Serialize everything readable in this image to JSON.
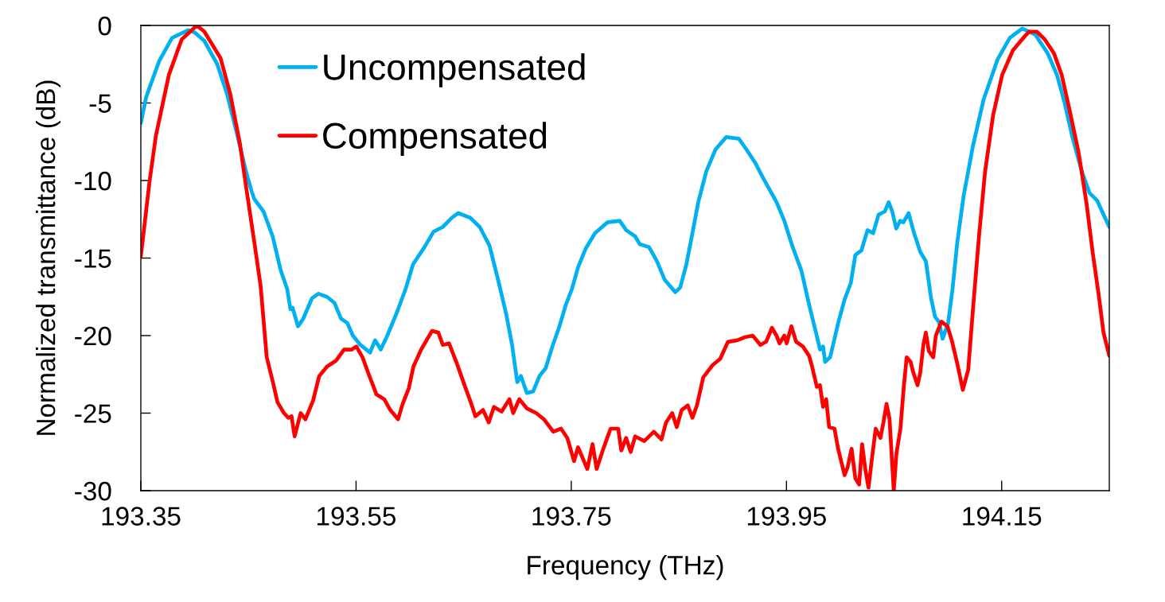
{
  "chart_data": {
    "type": "line",
    "xlabel": "Frequency (THz)",
    "ylabel": "Normalized transmittance (dB)",
    "xlim": [
      193.35,
      194.25
    ],
    "xticks": [
      193.35,
      193.55,
      193.75,
      193.95,
      194.15
    ],
    "ylim": [
      -30,
      0
    ],
    "yticks": [
      0,
      -5,
      -10,
      -15,
      -20,
      -25,
      -30
    ],
    "legend": "top left",
    "line_style": "solid",
    "series": [
      {
        "name": "Uncompensated",
        "color": "#00b0f0",
        "x": [
          193.35,
          193.355,
          193.367,
          193.379,
          193.394,
          193.4,
          193.409,
          193.421,
          193.43,
          193.439,
          193.448,
          193.453,
          193.4555,
          193.464,
          193.4725,
          193.48,
          193.486,
          193.489,
          193.491,
          193.496,
          193.501,
          193.509,
          193.515,
          193.523,
          193.53,
          193.536,
          193.542,
          193.547,
          193.554,
          193.563,
          193.5676,
          193.573,
          193.579,
          193.588,
          193.596,
          193.603,
          193.6135,
          193.622,
          193.6305,
          193.639,
          193.645,
          193.656,
          193.665,
          193.674,
          193.682,
          193.6895,
          193.695,
          193.6998,
          193.7032,
          193.7087,
          193.7146,
          193.7205,
          193.7262,
          193.732,
          193.739,
          193.745,
          193.7506,
          193.7563,
          193.7633,
          193.772,
          193.7836,
          193.795,
          193.801,
          193.8094,
          193.8136,
          193.8223,
          193.8296,
          193.8368,
          193.8467,
          193.8512,
          193.857,
          193.8626,
          193.868,
          193.8755,
          193.884,
          193.894,
          193.9057,
          193.9128,
          193.9213,
          193.928,
          193.9352,
          193.9408,
          193.948,
          193.9553,
          193.9638,
          193.971,
          193.9767,
          193.9812,
          193.984,
          193.9859,
          193.9905,
          193.994,
          193.998,
          194.0039,
          194.0098,
          194.014,
          194.0197,
          194.0253,
          194.0305,
          194.0356,
          194.0413,
          194.045,
          194.0483,
          194.052,
          194.0556,
          194.0586,
          194.0635,
          194.0686,
          194.0743,
          194.0795,
          194.0844,
          194.0881,
          194.0916,
          194.0951,
          194.1002,
          194.1043,
          194.1087,
          194.1146,
          194.1232,
          194.1331,
          194.1461,
          194.1575,
          194.1692,
          194.1813,
          194.1928,
          194.2014,
          194.2085,
          194.2157,
          194.2244,
          194.2316,
          194.2388,
          194.2447,
          194.25
        ],
        "values": [
          -6.3,
          -4.6,
          -2.3,
          -0.8,
          -0.3,
          -0.45,
          -1.0,
          -2.5,
          -4.4,
          -6.9,
          -9.5,
          -10.7,
          -11.2,
          -12.0,
          -13.6,
          -15.8,
          -17.0,
          -18.3,
          -18.2,
          -19.4,
          -18.9,
          -17.6,
          -17.3,
          -17.5,
          -17.9,
          -18.9,
          -19.2,
          -20.0,
          -20.6,
          -21.1,
          -20.3,
          -20.9,
          -20.0,
          -18.5,
          -17.0,
          -15.4,
          -14.3,
          -13.3,
          -13.0,
          -12.4,
          -12.1,
          -12.4,
          -13.0,
          -14.2,
          -16.4,
          -18.6,
          -20.6,
          -23.0,
          -22.6,
          -23.7,
          -23.6,
          -22.6,
          -22.1,
          -20.8,
          -19.4,
          -18.0,
          -17.0,
          -15.6,
          -14.4,
          -13.4,
          -12.7,
          -12.6,
          -13.2,
          -13.6,
          -14.1,
          -14.3,
          -15.2,
          -16.4,
          -17.2,
          -16.9,
          -15.4,
          -13.4,
          -11.4,
          -9.4,
          -8.0,
          -7.2,
          -7.3,
          -8.0,
          -8.9,
          -9.8,
          -10.7,
          -11.4,
          -12.6,
          -14.2,
          -15.8,
          -18.0,
          -19.6,
          -20.9,
          -20.7,
          -21.7,
          -21.4,
          -20.4,
          -19.2,
          -17.7,
          -16.6,
          -14.8,
          -14.5,
          -13.2,
          -13.4,
          -12.2,
          -12.0,
          -11.4,
          -12.0,
          -13.1,
          -12.6,
          -12.7,
          -12.1,
          -13.4,
          -14.6,
          -15.2,
          -17.6,
          -18.8,
          -19.1,
          -20.2,
          -19.2,
          -17.0,
          -14.0,
          -11.0,
          -7.8,
          -4.8,
          -2.2,
          -0.8,
          -0.2,
          -0.6,
          -1.8,
          -3.2,
          -5.0,
          -7.2,
          -9.4,
          -10.8,
          -11.3,
          -12.2,
          -13.0
        ]
      },
      {
        "name": "Compensated",
        "color": "#ff0000",
        "x": [
          193.35,
          193.358,
          193.364,
          193.376,
          193.388,
          193.402,
          193.409,
          193.424,
          193.433,
          193.442,
          193.448,
          193.4555,
          193.4613,
          193.467,
          193.4727,
          193.477,
          193.483,
          193.4871,
          193.49,
          193.4929,
          193.4985,
          193.5029,
          193.51,
          193.5158,
          193.523,
          193.5316,
          193.5388,
          193.546,
          193.5503,
          193.556,
          193.5618,
          193.569,
          193.5761,
          193.5818,
          193.589,
          193.5933,
          193.599,
          193.6033,
          193.6105,
          193.6206,
          193.6264,
          193.6306,
          193.6364,
          193.6437,
          193.6508,
          193.6566,
          193.6609,
          193.668,
          193.6733,
          193.6781,
          193.6853,
          193.6925,
          193.696,
          193.7017,
          193.7088,
          193.7175,
          193.7247,
          193.7333,
          193.7405,
          193.7463,
          193.7526,
          193.7563,
          193.7649,
          193.7698,
          193.7736,
          193.7793,
          193.7865,
          193.7936,
          193.7965,
          193.801,
          193.8052,
          193.8094,
          193.8179,
          193.8267,
          193.8338,
          193.8381,
          193.8438,
          193.848,
          193.8526,
          193.8583,
          193.8626,
          193.8668,
          193.8726,
          193.8814,
          193.8884,
          193.8956,
          193.9043,
          193.9114,
          193.9186,
          193.9258,
          193.931,
          193.9365,
          193.9407,
          193.9436,
          193.948,
          193.9502,
          193.9545,
          193.959,
          193.9652,
          193.971,
          193.9738,
          193.9782,
          193.9811,
          193.984,
          193.9869,
          193.9896,
          193.9946,
          193.998,
          194.004,
          194.0068,
          194.0105,
          194.014,
          194.0175,
          194.0203,
          194.0232,
          194.0262,
          194.0291,
          194.0329,
          194.0373,
          194.0401,
          194.043,
          194.0458,
          194.0497,
          194.0522,
          194.0559,
          194.0589,
          194.0617,
          194.0654,
          194.0675,
          194.0718,
          194.0743,
          194.0772,
          194.0795,
          194.0823,
          194.0864,
          194.0888,
          194.094,
          194.0996,
          194.1036,
          194.1087,
          194.1139,
          194.1189,
          194.1232,
          194.1289,
          194.1346,
          194.142,
          194.1504,
          194.1604,
          194.1714,
          194.1755,
          194.1826,
          194.19,
          194.1986,
          194.2058,
          194.2129,
          194.2215,
          194.2287,
          194.2345,
          194.2402,
          194.2446,
          194.25
        ],
        "values": [
          -14.9,
          -10.1,
          -7.1,
          -3.2,
          -0.9,
          0.0,
          -0.4,
          -2.1,
          -4.4,
          -7.6,
          -10.5,
          -14.0,
          -16.8,
          -21.4,
          -23.0,
          -24.3,
          -25.0,
          -25.3,
          -25.2,
          -26.5,
          -25.0,
          -25.4,
          -24.2,
          -22.6,
          -22.0,
          -21.6,
          -20.9,
          -20.9,
          -20.7,
          -21.4,
          -22.5,
          -23.8,
          -24.1,
          -24.8,
          -25.4,
          -24.4,
          -23.4,
          -22.0,
          -20.9,
          -19.7,
          -19.8,
          -20.6,
          -20.5,
          -21.8,
          -23.2,
          -24.3,
          -25.2,
          -24.8,
          -25.6,
          -24.6,
          -24.9,
          -24.1,
          -25.0,
          -24.1,
          -24.7,
          -25.0,
          -25.4,
          -26.2,
          -26.0,
          -26.6,
          -28.1,
          -27.2,
          -28.6,
          -27.0,
          -28.6,
          -27.4,
          -26.0,
          -26.0,
          -27.4,
          -26.6,
          -27.5,
          -26.5,
          -26.8,
          -26.2,
          -26.7,
          -25.6,
          -25.0,
          -25.9,
          -24.8,
          -24.5,
          -25.3,
          -24.5,
          -22.7,
          -21.9,
          -21.5,
          -20.4,
          -20.3,
          -20.1,
          -20.0,
          -20.6,
          -20.4,
          -19.5,
          -20.0,
          -20.5,
          -20.0,
          -20.5,
          -19.4,
          -20.4,
          -20.7,
          -21.3,
          -22.0,
          -23.3,
          -23.2,
          -24.6,
          -24.1,
          -25.9,
          -26.0,
          -27.3,
          -29.0,
          -28.5,
          -27.3,
          -29.2,
          -29.6,
          -27.0,
          -28.6,
          -29.8,
          -28.1,
          -26.0,
          -26.6,
          -25.6,
          -24.4,
          -25.4,
          -30.0,
          -27.6,
          -26.0,
          -23.4,
          -21.4,
          -21.7,
          -22.3,
          -23.2,
          -22.4,
          -20.6,
          -19.8,
          -21.0,
          -21.4,
          -20.0,
          -19.1,
          -19.4,
          -20.3,
          -21.8,
          -23.5,
          -22.2,
          -18.4,
          -13.6,
          -9.4,
          -5.8,
          -3.2,
          -1.6,
          -0.7,
          -0.4,
          -0.4,
          -0.9,
          -1.8,
          -3.2,
          -5.4,
          -8.2,
          -11.4,
          -14.6,
          -17.4,
          -19.8,
          -21.3
        ]
      }
    ]
  }
}
